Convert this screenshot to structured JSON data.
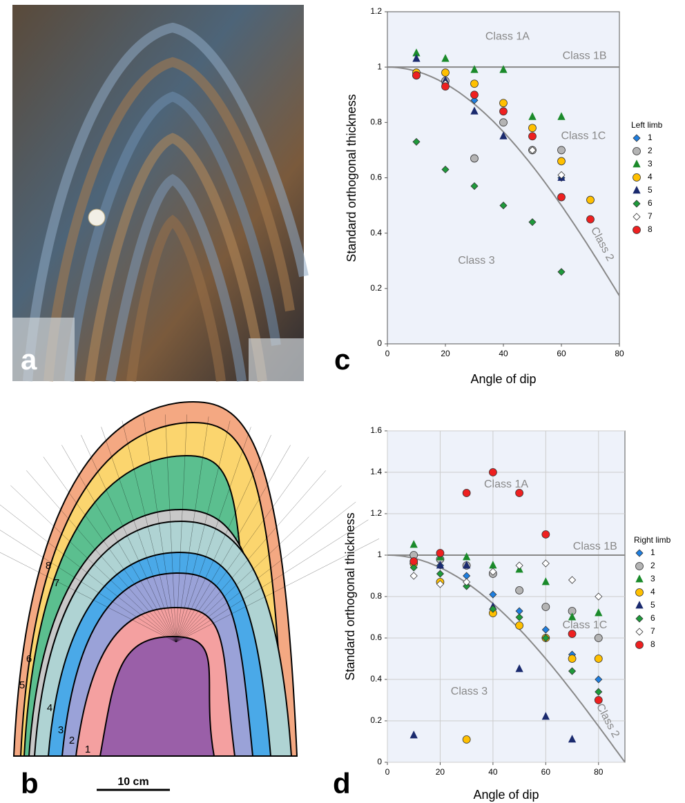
{
  "panel_labels": [
    "a",
    "b",
    "c",
    "d"
  ],
  "scale_bar": "10 cm",
  "layer_labels": [
    "1",
    "2",
    "3",
    "4",
    "5",
    "6",
    "7",
    "8"
  ],
  "chart_data": [
    {
      "type": "scatter",
      "x_label": "Angle of dip",
      "y_label": "Standard orthogonal thickness",
      "legend_title": "Left limb",
      "xlim": [
        0,
        80
      ],
      "ylim": [
        0,
        1.2
      ],
      "xticks": [
        0,
        20,
        40,
        60,
        80
      ],
      "yticks": [
        0,
        0.2,
        0.4,
        0.6,
        0.8,
        1,
        1.2
      ],
      "grid": false,
      "hline": 1,
      "annotations": [
        "Class 1A",
        "Class 1B",
        "Class 1C",
        "Class 2",
        "Class 3"
      ],
      "series": [
        {
          "name": "1",
          "color": "#1f7fe0",
          "marker": "diamond",
          "x": [
            10,
            20,
            30,
            50,
            60
          ],
          "values": [
            0.97,
            0.95,
            0.88,
            0.7,
            0.6
          ]
        },
        {
          "name": "2",
          "color": "#b4b4b4",
          "marker": "circle",
          "x": [
            10,
            20,
            30,
            40,
            50,
            60
          ],
          "values": [
            0.97,
            0.95,
            0.67,
            0.8,
            0.7,
            0.7
          ]
        },
        {
          "name": "3",
          "color": "#1a8a2a",
          "marker": "triangle",
          "x": [
            10,
            20,
            30,
            40,
            50,
            60
          ],
          "values": [
            1.05,
            1.03,
            0.99,
            0.99,
            0.82,
            0.82
          ]
        },
        {
          "name": "4",
          "color": "#ffc000",
          "marker": "circle",
          "x": [
            10,
            20,
            30,
            40,
            50,
            60,
            70
          ],
          "values": [
            0.98,
            0.98,
            0.94,
            0.87,
            0.78,
            0.66,
            0.52
          ]
        },
        {
          "name": "5",
          "color": "#1a2a6e",
          "marker": "triangle",
          "x": [
            10,
            20,
            30,
            40,
            60
          ],
          "values": [
            1.03,
            0.95,
            0.84,
            0.75,
            0.6
          ]
        },
        {
          "name": "6",
          "color": "#1e9a3a",
          "marker": "diamond",
          "x": [
            10,
            20,
            30,
            40,
            50,
            60
          ],
          "values": [
            0.73,
            0.63,
            0.57,
            0.5,
            0.44,
            0.26
          ]
        },
        {
          "name": "7",
          "color": "#ffffff",
          "marker": "diamond",
          "x": [
            20,
            50,
            60
          ],
          "values": [
            0.94,
            0.7,
            0.61
          ]
        },
        {
          "name": "8",
          "color": "#ee2020",
          "marker": "circle",
          "x": [
            10,
            20,
            30,
            40,
            50,
            60,
            70
          ],
          "values": [
            0.97,
            0.93,
            0.9,
            0.84,
            0.75,
            0.53,
            0.45
          ]
        }
      ]
    },
    {
      "type": "scatter",
      "x_label": "Angle of dip",
      "y_label": "Standard orthogonal thickness",
      "legend_title": "Right limb",
      "xlim": [
        0,
        90
      ],
      "ylim": [
        0,
        1.6
      ],
      "xticks": [
        0,
        20,
        40,
        60,
        80
      ],
      "yticks": [
        0,
        0.2,
        0.4,
        0.6,
        0.8,
        1,
        1.2,
        1.4,
        1.6
      ],
      "grid": true,
      "hline": 1,
      "annotations": [
        "Class 1A",
        "Class 1B",
        "Class 1C",
        "Class 2",
        "Class 3"
      ],
      "series": [
        {
          "name": "1",
          "color": "#1f7fe0",
          "marker": "diamond",
          "x": [
            10,
            20,
            30,
            40,
            50,
            60,
            70,
            80
          ],
          "values": [
            0.97,
            0.95,
            0.9,
            0.81,
            0.73,
            0.64,
            0.52,
            0.4
          ]
        },
        {
          "name": "2",
          "color": "#b4b4b4",
          "marker": "circle",
          "x": [
            10,
            20,
            30,
            40,
            50,
            60,
            70,
            80
          ],
          "values": [
            1,
            0.98,
            0.95,
            0.91,
            0.83,
            0.75,
            0.73,
            0.6
          ]
        },
        {
          "name": "3",
          "color": "#1a8a2a",
          "marker": "triangle",
          "x": [
            10,
            20,
            30,
            40,
            50,
            60,
            70,
            80
          ],
          "values": [
            1.05,
            0.99,
            0.99,
            0.95,
            0.93,
            0.87,
            0.7,
            0.72
          ]
        },
        {
          "name": "4",
          "color": "#ffc000",
          "marker": "circle",
          "x": [
            10,
            20,
            30,
            40,
            50,
            60,
            70,
            80
          ],
          "values": [
            0.96,
            0.87,
            0.11,
            0.72,
            0.66,
            0.6,
            0.5,
            0.5
          ]
        },
        {
          "name": "5",
          "color": "#1a2a6e",
          "marker": "triangle",
          "x": [
            10,
            20,
            30,
            40,
            50,
            60,
            70
          ],
          "values": [
            0.13,
            0.95,
            0.95,
            0.75,
            0.45,
            0.22,
            0.11
          ]
        },
        {
          "name": "6",
          "color": "#1e9a3a",
          "marker": "diamond",
          "x": [
            10,
            20,
            30,
            40,
            50,
            60,
            70,
            80
          ],
          "values": [
            0.94,
            0.91,
            0.85,
            0.74,
            0.7,
            0.6,
            0.44,
            0.34
          ]
        },
        {
          "name": "7",
          "color": "#ffffff",
          "marker": "diamond",
          "x": [
            10,
            20,
            30,
            40,
            50,
            60,
            70,
            80
          ],
          "values": [
            0.9,
            0.86,
            0.87,
            0.92,
            0.95,
            0.96,
            0.88,
            0.8
          ]
        },
        {
          "name": "8",
          "color": "#ee2020",
          "marker": "circle",
          "x": [
            10,
            20,
            30,
            40,
            50,
            60,
            70,
            80
          ],
          "values": [
            0.97,
            1.01,
            1.3,
            1.4,
            1.3,
            1.1,
            0.62,
            0.3
          ]
        }
      ]
    }
  ]
}
